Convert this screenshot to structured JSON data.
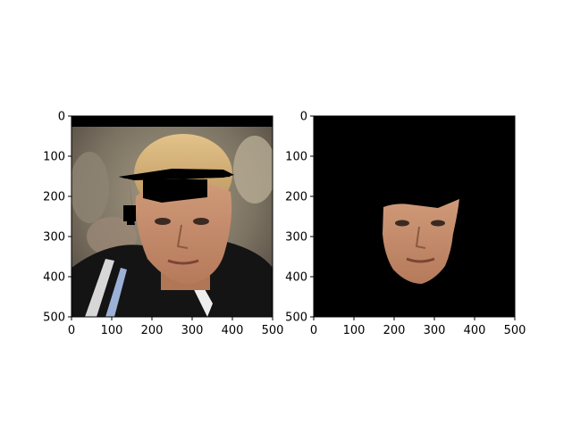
{
  "chart_data": [
    {
      "type": "image",
      "panel": "left",
      "xlim": [
        0,
        500
      ],
      "ylim": [
        500,
        0
      ],
      "xticks": [
        0,
        100,
        200,
        300,
        400,
        500
      ],
      "yticks": [
        0,
        100,
        200,
        300,
        400,
        500
      ],
      "xtick_labels": [
        "0",
        "100",
        "200",
        "300",
        "400",
        "500"
      ],
      "ytick_labels": [
        "0",
        "100",
        "200",
        "300",
        "400",
        "500"
      ],
      "content": "photo of face wearing a black graduation cap overlay"
    },
    {
      "type": "image",
      "panel": "right",
      "xlim": [
        0,
        500
      ],
      "ylim": [
        500,
        0
      ],
      "xticks": [
        0,
        100,
        200,
        300,
        400,
        500
      ],
      "yticks": [
        0,
        100,
        200,
        300,
        400,
        500
      ],
      "xtick_labels": [
        "0",
        "100",
        "200",
        "300",
        "400",
        "500"
      ],
      "ytick_labels": [
        "0",
        "100",
        "200",
        "300",
        "400",
        "500"
      ],
      "content": "segmented face region on black background"
    }
  ],
  "colors": {
    "axis": "#000000",
    "mask_background": "#000000",
    "skin": "#c98d6c"
  }
}
